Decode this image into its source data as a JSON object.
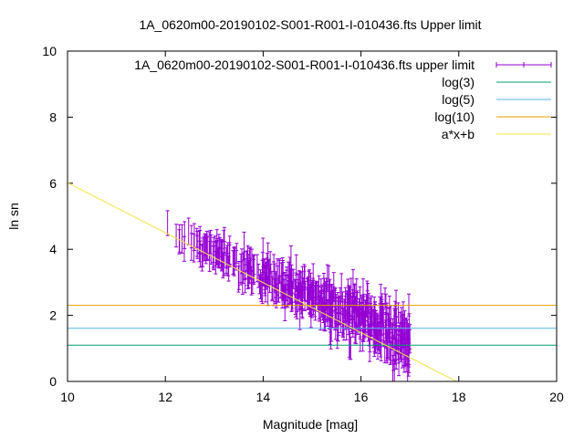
{
  "chart_data": {
    "type": "scatter",
    "title": "1A_0620m00-20190102-S001-R001-I-010436.fts Upper limit",
    "xlabel": "Magnitude [mag]",
    "ylabel": "ln sn",
    "xlim": [
      10,
      20
    ],
    "ylim": [
      0,
      10
    ],
    "x_ticks": [
      10,
      12,
      14,
      16,
      18,
      20
    ],
    "y_ticks": [
      0,
      2,
      4,
      6,
      8,
      10
    ],
    "grid": false,
    "legend_position": "top-right",
    "series": [
      {
        "name": "1A_0620m00-20190102-S001-R001-I-010436.fts upper limit",
        "kind": "errorbars",
        "color": "#9400d3",
        "x_range": [
          12.0,
          17.0
        ],
        "y_at_x_min": 4.6,
        "y_at_x_max": 1.2,
        "typical_error": 0.35,
        "point_count": 600
      },
      {
        "name": "log(3)",
        "kind": "hline",
        "y": 1.0986,
        "color": "#009e73"
      },
      {
        "name": "log(5)",
        "kind": "hline",
        "y": 1.6094,
        "color": "#56b4e9"
      },
      {
        "name": "log(10)",
        "kind": "hline",
        "y": 2.3026,
        "color": "#e69f00"
      },
      {
        "name": "a*x+b",
        "kind": "line",
        "slope": -0.7564,
        "intercept": 13.58,
        "color": "#f0e442"
      }
    ]
  }
}
